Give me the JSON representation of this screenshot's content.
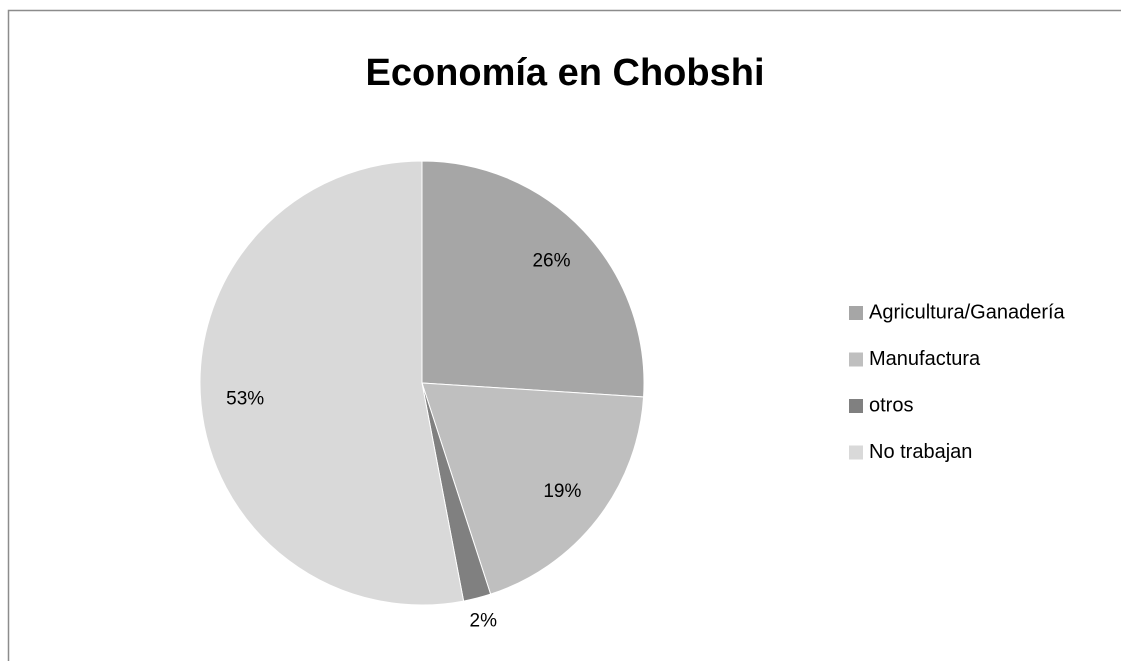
{
  "chart_data": {
    "type": "pie",
    "title": "Economía en Chobshi",
    "categories": [
      "Agricultura/Ganadería",
      "Manufactura",
      "otros",
      "No trabajan"
    ],
    "values": [
      26,
      19,
      2,
      53
    ],
    "value_labels": [
      "26%",
      "19%",
      "2%",
      "53%"
    ],
    "colors": [
      "#a6a6a6",
      "#bfbfbf",
      "#808080",
      "#d9d9d9"
    ],
    "legend": "right"
  }
}
